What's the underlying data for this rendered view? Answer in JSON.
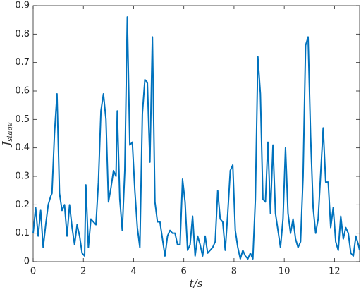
{
  "chart_data": {
    "type": "line",
    "xlabel": "t/s",
    "ylabel": "J",
    "ylabel_subscript": "stage",
    "x": [
      0,
      0.1,
      0.2,
      0.3,
      0.4,
      0.5,
      0.6,
      0.7,
      0.75,
      0.85,
      0.95,
      1.05,
      1.15,
      1.25,
      1.35,
      1.45,
      1.55,
      1.65,
      1.75,
      1.85,
      1.95,
      2.05,
      2.1,
      2.2,
      2.3,
      2.4,
      2.5,
      2.6,
      2.7,
      2.8,
      2.9,
      3.0,
      3.1,
      3.2,
      3.3,
      3.35,
      3.45,
      3.55,
      3.65,
      3.75,
      3.85,
      3.95,
      4.05,
      4.15,
      4.25,
      4.35,
      4.45,
      4.55,
      4.65,
      4.75,
      4.85,
      4.95,
      5.05,
      5.15,
      5.25,
      5.35,
      5.45,
      5.55,
      5.65,
      5.75,
      5.85,
      5.95,
      6.05,
      6.15,
      6.25,
      6.35,
      6.45,
      6.55,
      6.65,
      6.75,
      6.85,
      6.95,
      7.05,
      7.15,
      7.25,
      7.35,
      7.45,
      7.55,
      7.65,
      7.75,
      7.85,
      7.95,
      8.05,
      8.15,
      8.25,
      8.35,
      8.45,
      8.55,
      8.65,
      8.75,
      8.85,
      8.95,
      9.05,
      9.15,
      9.25,
      9.35,
      9.45,
      9.55,
      9.65,
      9.75,
      9.85,
      9.95,
      10.05,
      10.15,
      10.25,
      10.35,
      10.45,
      10.55,
      10.65,
      10.75,
      10.85,
      10.95,
      11.05,
      11.15,
      11.25,
      11.35,
      11.45,
      11.55,
      11.65,
      11.75,
      11.85,
      11.95,
      12.05,
      12.15,
      12.25,
      12.35,
      12.45,
      12.55,
      12.65,
      12.75,
      12.85,
      12.95,
      13.0
    ],
    "series": [
      {
        "color": "#0072bd",
        "values": [
          0.1,
          0.19,
          0.09,
          0.18,
          0.05,
          0.13,
          0.2,
          0.23,
          0.24,
          0.45,
          0.59,
          0.24,
          0.18,
          0.2,
          0.09,
          0.2,
          0.12,
          0.06,
          0.13,
          0.09,
          0.03,
          0.02,
          0.27,
          0.05,
          0.15,
          0.14,
          0.13,
          0.28,
          0.53,
          0.59,
          0.5,
          0.21,
          0.26,
          0.32,
          0.3,
          0.53,
          0.22,
          0.11,
          0.32,
          0.86,
          0.41,
          0.42,
          0.25,
          0.12,
          0.05,
          0.52,
          0.64,
          0.63,
          0.35,
          0.79,
          0.21,
          0.14,
          0.14,
          0.08,
          0.02,
          0.09,
          0.11,
          0.1,
          0.1,
          0.06,
          0.06,
          0.29,
          0.21,
          0.04,
          0.06,
          0.16,
          0.02,
          0.09,
          0.06,
          0.02,
          0.09,
          0.03,
          0.04,
          0.05,
          0.07,
          0.25,
          0.15,
          0.14,
          0.04,
          0.17,
          0.32,
          0.34,
          0.11,
          0.05,
          0.01,
          0.04,
          0.02,
          0.01,
          0.03,
          0.01,
          0.22,
          0.72,
          0.59,
          0.22,
          0.21,
          0.42,
          0.17,
          0.41,
          0.17,
          0.11,
          0.05,
          0.15,
          0.4,
          0.17,
          0.1,
          0.15,
          0.08,
          0.05,
          0.07,
          0.3,
          0.76,
          0.79,
          0.44,
          0.19,
          0.1,
          0.15,
          0.31,
          0.47,
          0.28,
          0.28,
          0.12,
          0.19,
          0.07,
          0.04,
          0.16,
          0.08,
          0.12,
          0.1,
          0.03,
          0.02,
          0.09,
          0.06,
          0.04
        ]
      }
    ],
    "xlim": [
      0,
      13
    ],
    "xticks": [
      0,
      2,
      4,
      6,
      8,
      10,
      12
    ],
    "ylim": [
      0,
      0.9
    ],
    "yticks": [
      0,
      0.1,
      0.2,
      0.3,
      0.4,
      0.5,
      0.6,
      0.7,
      0.8,
      0.9
    ],
    "grid": false
  }
}
